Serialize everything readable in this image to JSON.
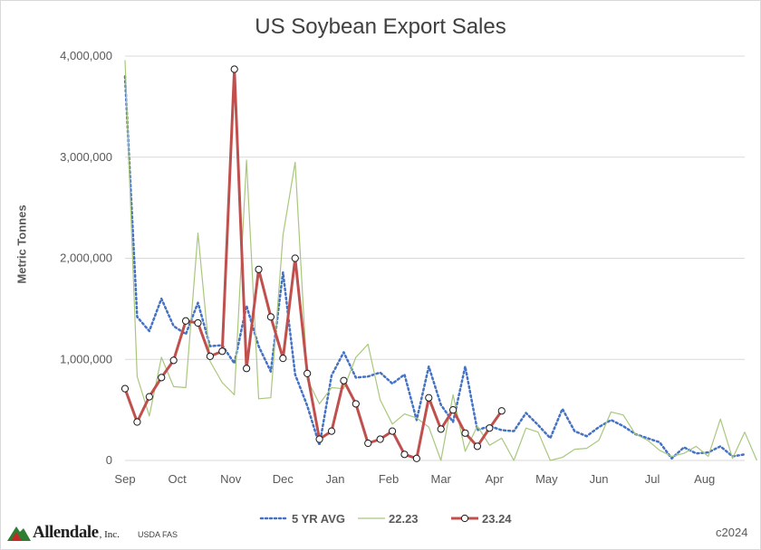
{
  "chart_data": {
    "type": "line",
    "title": "US Soybean Export Sales",
    "ylabel": "Metric Tonnes",
    "xlabel": "",
    "ylim": [
      0,
      4000000
    ],
    "yticks": [
      0,
      1000000,
      2000000,
      3000000,
      4000000
    ],
    "ytick_labels": [
      "0",
      "1,000,000",
      "2,000,000",
      "3,000,000",
      "4,000,000"
    ],
    "x_unit": "week index (Sep start)",
    "xlim": [
      0,
      51
    ],
    "xtick_positions": [
      0,
      4.3,
      8.7,
      13,
      17.3,
      21.7,
      26,
      30.4,
      34.7,
      39,
      43.4,
      47.7
    ],
    "xtick_labels": [
      "Sep",
      "Oct",
      "Nov",
      "Dec",
      "Jan",
      "Feb",
      "Mar",
      "Apr",
      "May",
      "Jun",
      "Jul",
      "Aug"
    ],
    "grid": "horizontal",
    "legend_position": "bottom",
    "series": [
      {
        "name": "5 YR AVG",
        "color": "#4472c4",
        "style": "dotted",
        "values": [
          3800000,
          1420000,
          1280000,
          1600000,
          1330000,
          1250000,
          1560000,
          1130000,
          1140000,
          960000,
          1530000,
          1130000,
          880000,
          1860000,
          850000,
          540000,
          150000,
          840000,
          1070000,
          820000,
          830000,
          870000,
          760000,
          850000,
          400000,
          930000,
          550000,
          380000,
          930000,
          300000,
          340000,
          300000,
          290000,
          470000,
          350000,
          220000,
          510000,
          290000,
          240000,
          330000,
          400000,
          340000,
          260000,
          220000,
          180000,
          20000,
          130000,
          70000,
          80000,
          140000,
          40000,
          60000
        ]
      },
      {
        "name": "22.23",
        "color": "#a9c77c",
        "style": "solid",
        "values": [
          3960000,
          830000,
          440000,
          1020000,
          730000,
          720000,
          2250000,
          980000,
          770000,
          650000,
          2970000,
          610000,
          620000,
          2230000,
          2950000,
          800000,
          560000,
          720000,
          710000,
          1020000,
          1150000,
          600000,
          360000,
          460000,
          420000,
          330000,
          0,
          650000,
          90000,
          340000,
          150000,
          220000,
          0,
          320000,
          280000,
          0,
          30000,
          110000,
          120000,
          200000,
          480000,
          450000,
          260000,
          200000,
          100000,
          40000,
          70000,
          140000,
          40000,
          410000,
          20000,
          280000,
          0
        ]
      },
      {
        "name": "23.24",
        "color": "#c0504d",
        "style": "solid-markers",
        "values": [
          710000,
          380000,
          630000,
          820000,
          990000,
          1380000,
          1360000,
          1030000,
          1080000,
          3870000,
          910000,
          1890000,
          1420000,
          1010000,
          2000000,
          860000,
          210000,
          290000,
          790000,
          560000,
          170000,
          210000,
          290000,
          60000,
          20000,
          620000,
          310000,
          500000,
          270000,
          140000,
          320000,
          490000
        ]
      }
    ]
  },
  "footer": {
    "logo_text": "Allendale",
    "logo_suffix": ", Inc.",
    "source": "USDA FAS",
    "copyright": "c2024"
  }
}
